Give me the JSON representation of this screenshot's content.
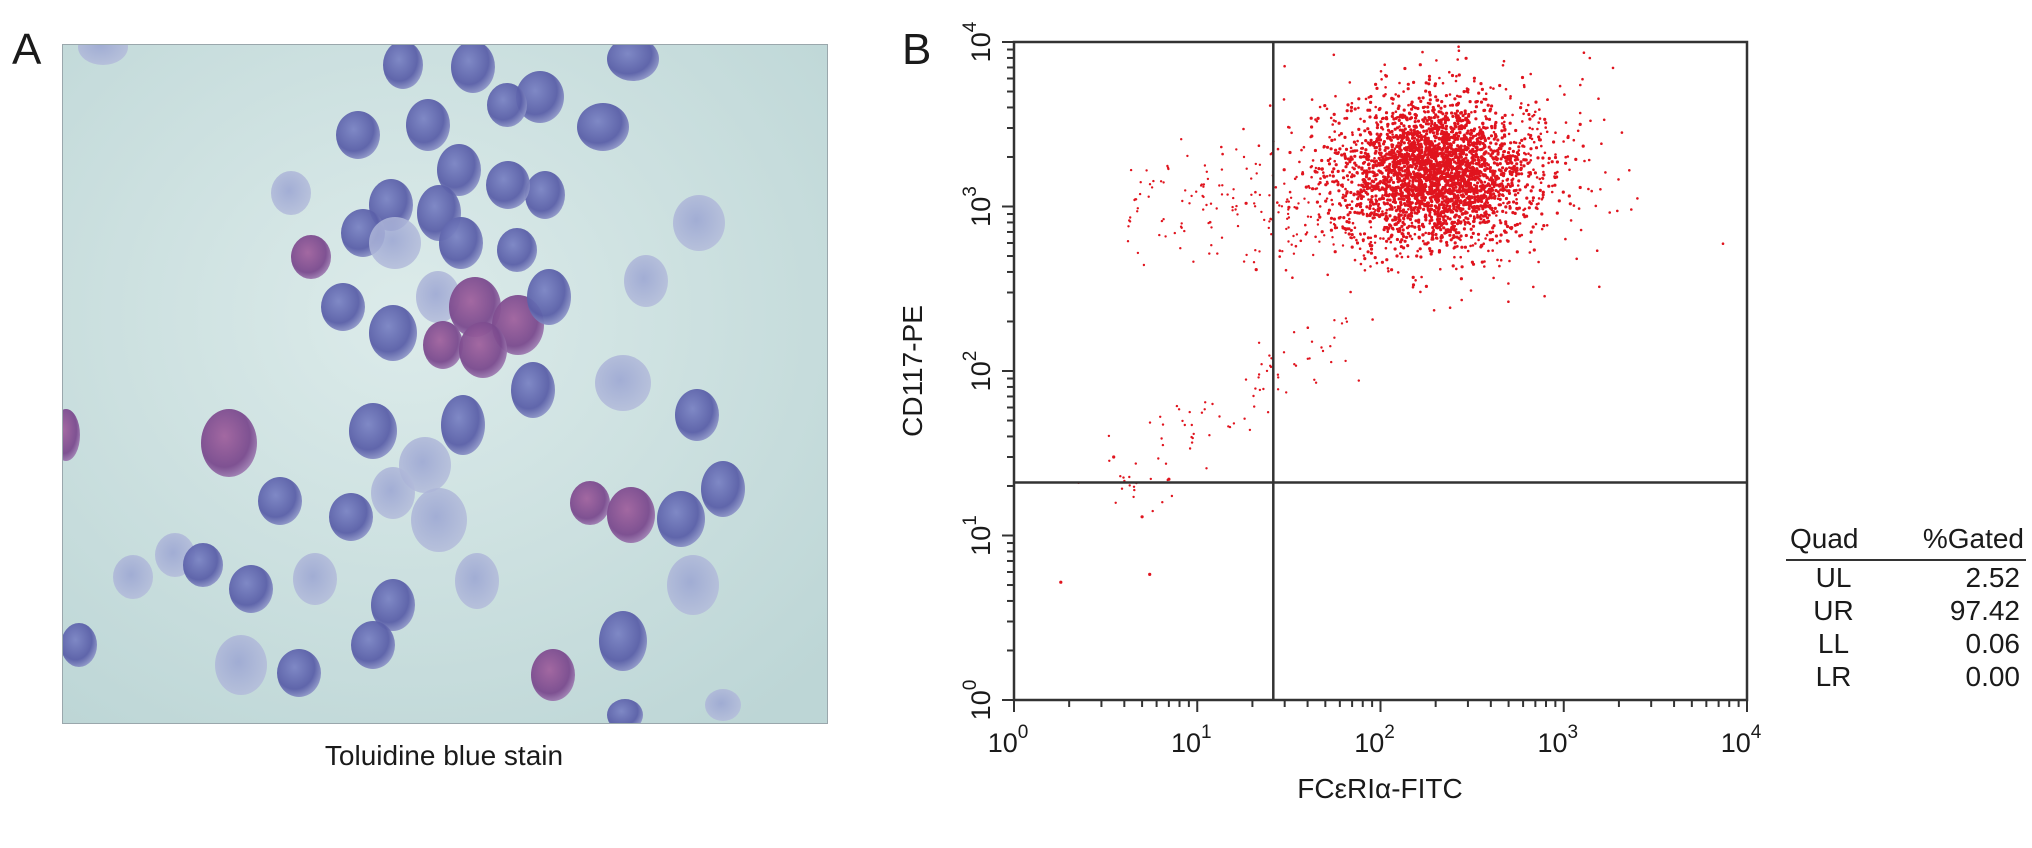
{
  "panel_a": {
    "letter": "A",
    "caption": "Toluidine blue stain"
  },
  "panel_b": {
    "letter": "B"
  },
  "colors": {
    "dots": "#e0141e",
    "gate_lines": "#333333",
    "cell_blue": "#5a5fa8",
    "cell_purple": "#8a4f94",
    "background_stain": "#c9dedd"
  },
  "chart_data": {
    "type": "scatter",
    "xlabel": "FCεRIα-FITC",
    "ylabel": "CD117-PE",
    "x_scale": "log",
    "y_scale": "log",
    "xlim": [
      1,
      10000
    ],
    "ylim": [
      1,
      10000
    ],
    "x_ticks": [
      {
        "base": "10",
        "exp": "0"
      },
      {
        "base": "10",
        "exp": "1"
      },
      {
        "base": "10",
        "exp": "2"
      },
      {
        "base": "10",
        "exp": "3"
      },
      {
        "base": "10",
        "exp": "4"
      }
    ],
    "y_ticks": [
      {
        "base": "10",
        "exp": "0"
      },
      {
        "base": "10",
        "exp": "1"
      },
      {
        "base": "10",
        "exp": "2"
      },
      {
        "base": "10",
        "exp": "3"
      },
      {
        "base": "10",
        "exp": "4"
      }
    ],
    "gate": {
      "x": 26,
      "y": 21
    },
    "population_center": {
      "x": 200,
      "y": 1600
    },
    "quadrant_table": {
      "headers": [
        "Quad",
        "%Gated"
      ],
      "rows": [
        {
          "quad": "UL",
          "value": "2.52"
        },
        {
          "quad": "UR",
          "value": "97.42"
        },
        {
          "quad": "LL",
          "value": "0.06"
        },
        {
          "quad": "LR",
          "value": "0.00"
        }
      ]
    }
  }
}
